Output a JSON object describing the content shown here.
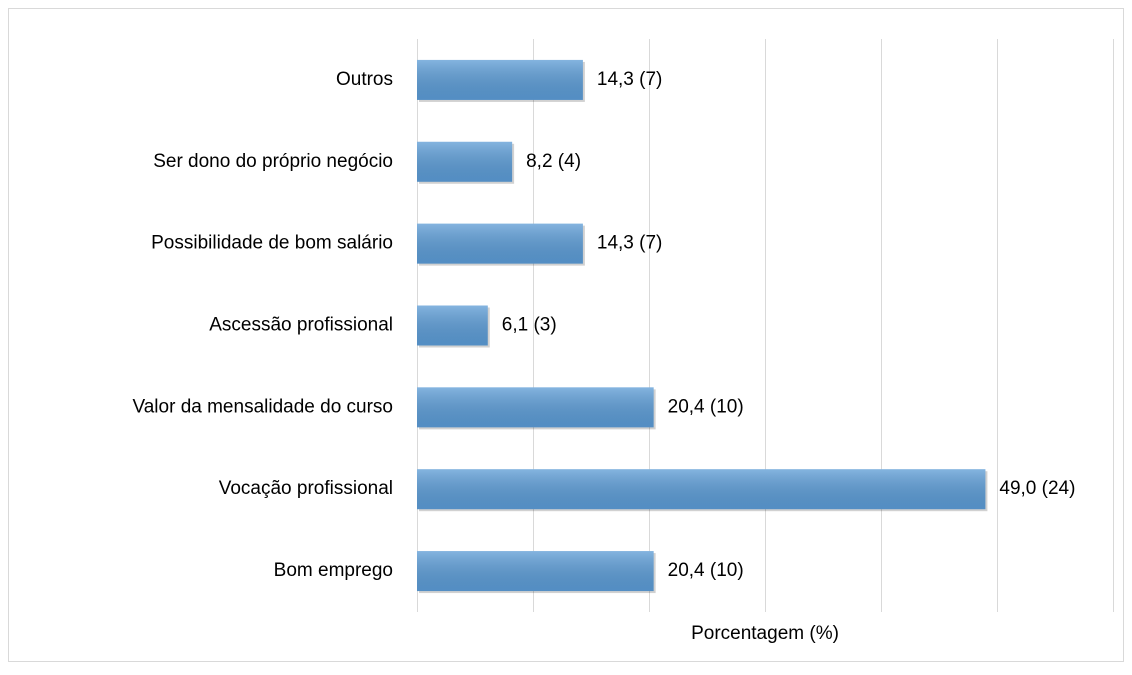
{
  "chart_data": {
    "type": "bar",
    "orientation": "horizontal",
    "xlabel": "Porcentagem (%)",
    "categories": [
      "Outros",
      "Ser dono do próprio negócio",
      "Possibilidade de bom salário",
      "Ascessão profissional",
      "Valor da mensalidade do curso",
      "Vocação profissional",
      "Bom emprego"
    ],
    "values": [
      14.3,
      8.2,
      14.3,
      6.1,
      20.4,
      49.0,
      20.4
    ],
    "value_labels": [
      "14,3 (7)",
      "8,2 (4)",
      "14,3 (7)",
      "6,1 (3)",
      "20,4 (10)",
      "49,0 (24)",
      "20,4 (10)"
    ],
    "color": "#5b9bd5",
    "xlim": [
      0,
      60
    ],
    "xticks": [
      0,
      10,
      20,
      30,
      40,
      50,
      60
    ],
    "grid": true
  }
}
